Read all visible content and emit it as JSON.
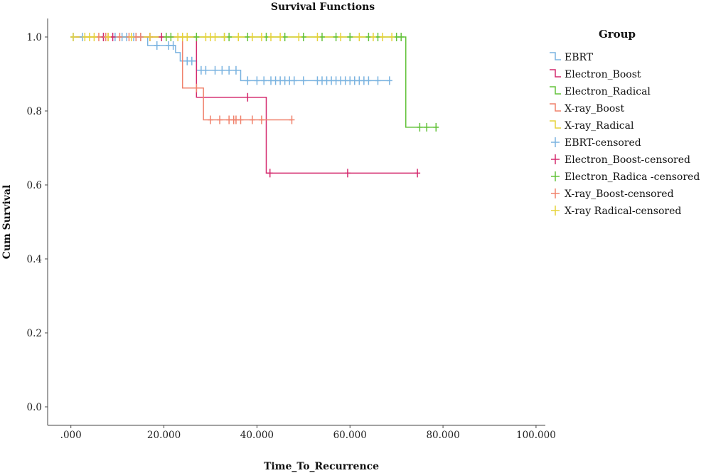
{
  "chart_data": {
    "type": "line",
    "title": "Survival Functions",
    "xlabel": "Time_To_Recurrence",
    "ylabel": "Cum Survival",
    "xlim": [
      -5,
      102
    ],
    "ylim": [
      -0.05,
      1.05
    ],
    "x_ticks": [
      {
        "value": 0,
        "label": ".000"
      },
      {
        "value": 20,
        "label": "20.000"
      },
      {
        "value": 40,
        "label": "40.000"
      },
      {
        "value": 60,
        "label": "60.000"
      },
      {
        "value": 80,
        "label": "80.000"
      },
      {
        "value": 100,
        "label": "100.000"
      }
    ],
    "y_ticks": [
      {
        "value": 0,
        "label": "0.0"
      },
      {
        "value": 0.2,
        "label": "0.2"
      },
      {
        "value": 0.4,
        "label": "0.4"
      },
      {
        "value": 0.6,
        "label": "0.6"
      },
      {
        "value": 0.8,
        "label": "0.8"
      },
      {
        "value": 1.0,
        "label": "1.0"
      }
    ],
    "grid": false,
    "legend_title": "Group",
    "legend_position": "right",
    "series": [
      {
        "name": "EBRT",
        "censored_name": "EBRT-censored",
        "color": "#7ab3e0",
        "steps": [
          [
            0,
            1.0
          ],
          [
            16.5,
            0.977
          ],
          [
            22.5,
            0.958
          ],
          [
            23.5,
            0.935
          ],
          [
            27,
            0.91
          ],
          [
            36.5,
            0.882
          ],
          [
            68.5,
            0.882
          ]
        ],
        "censored": [
          [
            0.5,
            1.0
          ],
          [
            2.5,
            1.0
          ],
          [
            7,
            1.0
          ],
          [
            9.5,
            1.0
          ],
          [
            11,
            1.0
          ],
          [
            12,
            1.0
          ],
          [
            13.5,
            1.0
          ],
          [
            14,
            1.0
          ],
          [
            15,
            1.0
          ],
          [
            18.5,
            0.977
          ],
          [
            21,
            0.977
          ],
          [
            22,
            0.977
          ],
          [
            25,
            0.935
          ],
          [
            26,
            0.935
          ],
          [
            28,
            0.91
          ],
          [
            29,
            0.91
          ],
          [
            31,
            0.91
          ],
          [
            32.5,
            0.91
          ],
          [
            34,
            0.91
          ],
          [
            35.5,
            0.91
          ],
          [
            38,
            0.882
          ],
          [
            40,
            0.882
          ],
          [
            41.5,
            0.882
          ],
          [
            43,
            0.882
          ],
          [
            44,
            0.882
          ],
          [
            45,
            0.882
          ],
          [
            46,
            0.882
          ],
          [
            47,
            0.882
          ],
          [
            48,
            0.882
          ],
          [
            50,
            0.882
          ],
          [
            53,
            0.882
          ],
          [
            54,
            0.882
          ],
          [
            55,
            0.882
          ],
          [
            56,
            0.882
          ],
          [
            57,
            0.882
          ],
          [
            58,
            0.882
          ],
          [
            59,
            0.882
          ],
          [
            60,
            0.882
          ],
          [
            61,
            0.882
          ],
          [
            62,
            0.882
          ],
          [
            63,
            0.882
          ],
          [
            64,
            0.882
          ],
          [
            66,
            0.882
          ],
          [
            68.5,
            0.882
          ]
        ]
      },
      {
        "name": "Electron_Boost",
        "censored_name": "Electron_Boost-censored",
        "color": "#d42a6e",
        "steps": [
          [
            0,
            1.0
          ],
          [
            27,
            0.837
          ],
          [
            42,
            0.632
          ],
          [
            74.5,
            0.632
          ]
        ],
        "censored": [
          [
            7,
            1.0
          ],
          [
            9,
            1.0
          ],
          [
            13,
            1.0
          ],
          [
            17,
            1.0
          ],
          [
            19.5,
            1.0
          ],
          [
            38,
            0.837
          ],
          [
            42.8,
            0.632
          ],
          [
            59.5,
            0.632
          ],
          [
            74.5,
            0.632
          ]
        ]
      },
      {
        "name": "Electron_Radical",
        "censored_name": "Electron_Radica -censored",
        "color": "#63c23a",
        "steps": [
          [
            0,
            1.0
          ],
          [
            72,
            0.756
          ],
          [
            79,
            0.756
          ]
        ],
        "censored": [
          [
            20.5,
            1.0
          ],
          [
            21.5,
            1.0
          ],
          [
            27,
            1.0
          ],
          [
            33,
            1.0
          ],
          [
            34,
            1.0
          ],
          [
            38,
            1.0
          ],
          [
            42,
            1.0
          ],
          [
            46,
            1.0
          ],
          [
            50,
            1.0
          ],
          [
            54,
            1.0
          ],
          [
            57,
            1.0
          ],
          [
            60,
            1.0
          ],
          [
            64,
            1.0
          ],
          [
            66,
            1.0
          ],
          [
            70,
            1.0
          ],
          [
            71,
            1.0
          ],
          [
            75,
            0.756
          ],
          [
            76.5,
            0.756
          ],
          [
            78.5,
            0.756
          ]
        ]
      },
      {
        "name": "X-ray_Boost",
        "censored_name": "X-ray_Boost-censored",
        "color": "#f0826c",
        "steps": [
          [
            0,
            1.0
          ],
          [
            24,
            0.862
          ],
          [
            28.5,
            0.776
          ],
          [
            47.5,
            0.776
          ]
        ],
        "censored": [
          [
            6,
            1.0
          ],
          [
            7.5,
            1.0
          ],
          [
            8,
            1.0
          ],
          [
            10.5,
            1.0
          ],
          [
            12.5,
            1.0
          ],
          [
            14,
            1.0
          ],
          [
            15,
            1.0
          ],
          [
            27,
            0.862
          ],
          [
            30,
            0.776
          ],
          [
            32,
            0.776
          ],
          [
            34,
            0.776
          ],
          [
            35,
            0.776
          ],
          [
            35.5,
            0.776
          ],
          [
            36.5,
            0.776
          ],
          [
            39,
            0.776
          ],
          [
            41,
            0.776
          ],
          [
            47.5,
            0.776
          ]
        ]
      },
      {
        "name": "X-ray_Radical",
        "censored_name": "X-ray Radical-censored",
        "color": "#e6d23a",
        "steps": [
          [
            0,
            1.0
          ],
          [
            69,
            1.0
          ]
        ],
        "censored": [
          [
            0.5,
            1.0
          ],
          [
            3,
            1.0
          ],
          [
            4,
            1.0
          ],
          [
            5,
            1.0
          ],
          [
            8,
            1.0
          ],
          [
            13,
            1.0
          ],
          [
            17,
            1.0
          ],
          [
            23,
            1.0
          ],
          [
            24,
            1.0
          ],
          [
            25,
            1.0
          ],
          [
            29,
            1.0
          ],
          [
            30,
            1.0
          ],
          [
            31,
            1.0
          ],
          [
            33,
            1.0
          ],
          [
            36,
            1.0
          ],
          [
            39,
            1.0
          ],
          [
            41,
            1.0
          ],
          [
            43,
            1.0
          ],
          [
            45,
            1.0
          ],
          [
            49,
            1.0
          ],
          [
            53,
            1.0
          ],
          [
            58,
            1.0
          ],
          [
            62,
            1.0
          ],
          [
            65,
            1.0
          ],
          [
            67,
            1.0
          ],
          [
            69,
            1.0
          ]
        ]
      }
    ]
  }
}
